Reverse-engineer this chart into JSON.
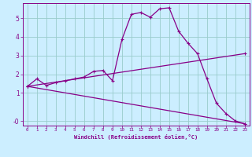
{
  "bg_color": "#cceeff",
  "line_color": "#880088",
  "grid_color": "#99cccc",
  "xlabel": "Windchill (Refroidissement éolien,°C)",
  "xlim": [
    -0.5,
    23.5
  ],
  "ylim": [
    -0.75,
    5.8
  ],
  "ytick_vals": [
    -0.5,
    1,
    2,
    3,
    4,
    5
  ],
  "ytick_labels": [
    "-0",
    "1",
    "2",
    "3",
    "4",
    "5"
  ],
  "line1_x": [
    0,
    1,
    2,
    3,
    4,
    5,
    6,
    7,
    8,
    9,
    10,
    11,
    12,
    13,
    14,
    15,
    16,
    17,
    18,
    19,
    20,
    21,
    22,
    23
  ],
  "line1_y": [
    1.35,
    1.75,
    1.4,
    1.55,
    1.65,
    1.75,
    1.85,
    2.15,
    2.2,
    1.65,
    3.85,
    5.2,
    5.3,
    5.05,
    5.5,
    5.55,
    4.3,
    3.65,
    3.1,
    1.75,
    0.45,
    -0.1,
    -0.5,
    -0.65
  ],
  "line2_x": [
    0,
    23
  ],
  "line2_y": [
    1.35,
    3.1
  ],
  "line3_x": [
    0,
    23
  ],
  "line3_y": [
    1.35,
    -0.65
  ]
}
